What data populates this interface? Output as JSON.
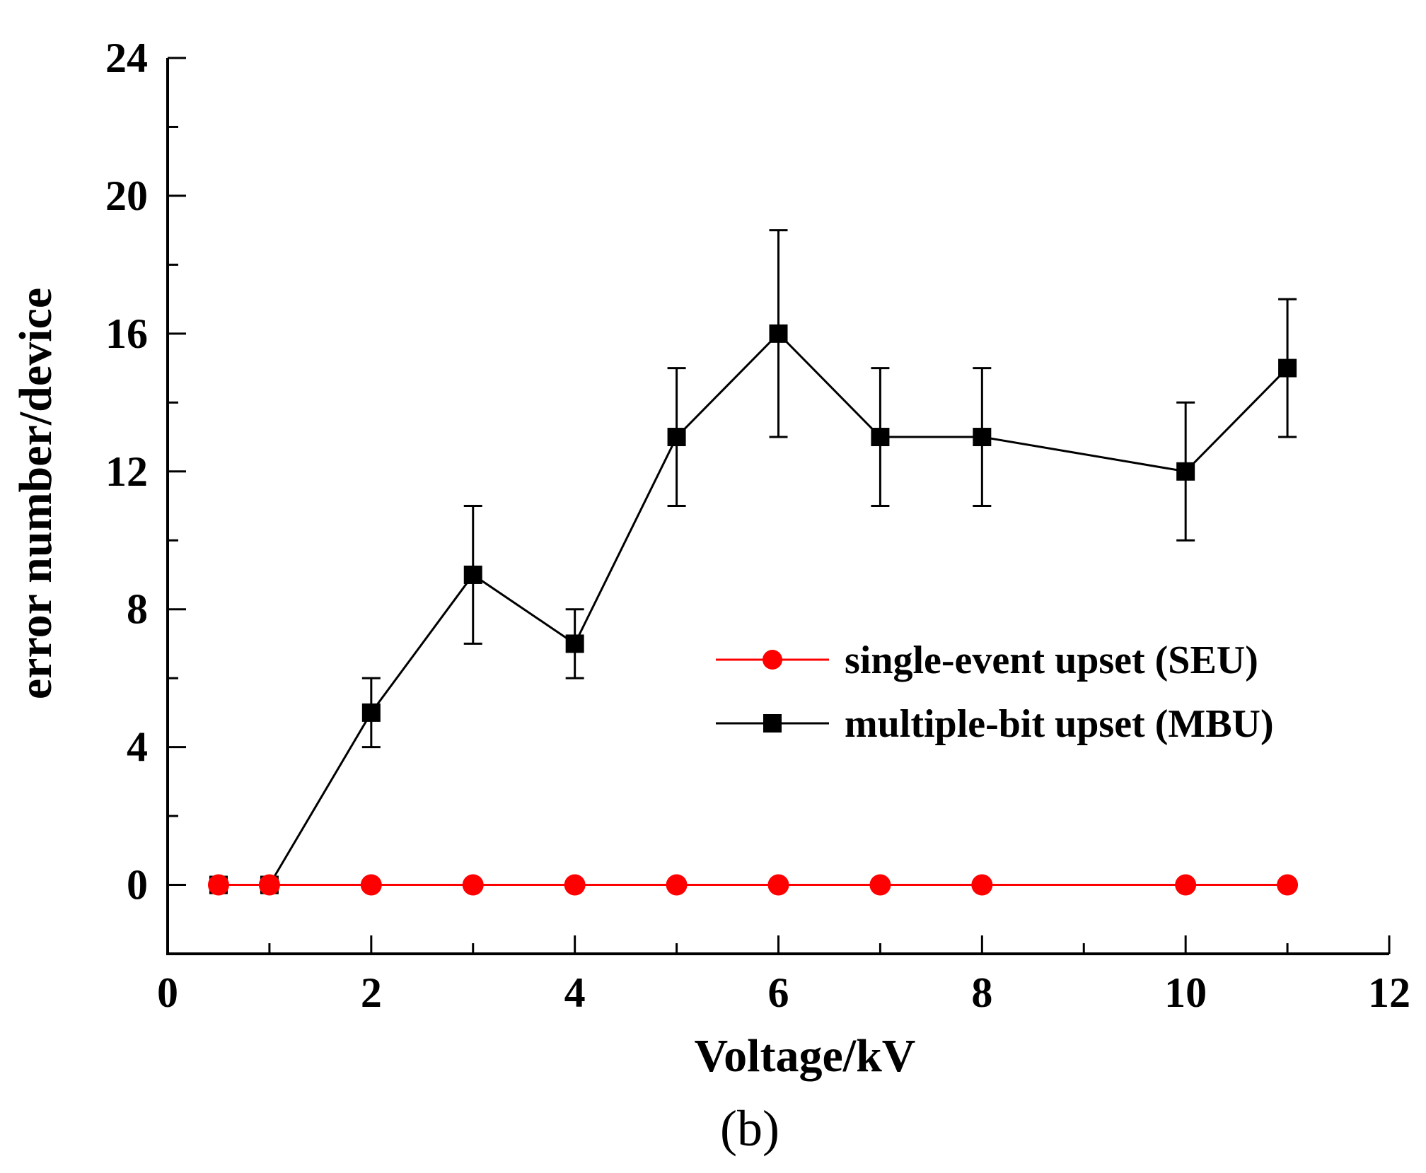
{
  "chart_data": {
    "type": "line",
    "title": "",
    "xlabel": "Voltage/kV",
    "ylabel": "error number/device",
    "panel_label": "(b)",
    "xlim": [
      0,
      12
    ],
    "ylim": [
      -2,
      24
    ],
    "xticks": [
      0,
      2,
      4,
      6,
      8,
      10,
      12
    ],
    "yticks": [
      0,
      4,
      8,
      12,
      16,
      20,
      24
    ],
    "grid": false,
    "legend_position": "center-right",
    "x": [
      0.5,
      1,
      2,
      3,
      4,
      5,
      6,
      7,
      8,
      10,
      11
    ],
    "series": [
      {
        "name": "single-event upset (SEU)",
        "color": "#ff0000",
        "marker": "circle",
        "values": [
          0,
          0,
          0,
          0,
          0,
          0,
          0,
          0,
          0,
          0,
          0
        ]
      },
      {
        "name": "multiple-bit upset (MBU)",
        "color": "#000000",
        "marker": "square",
        "values": [
          0,
          0,
          5,
          9,
          7,
          13,
          16,
          13,
          13,
          12,
          15
        ],
        "error_low": [
          0,
          0,
          4,
          7,
          6,
          11,
          13,
          11,
          11,
          10,
          13
        ],
        "error_high": [
          0,
          0,
          6,
          11,
          8,
          15,
          19,
          15,
          15,
          14,
          17
        ]
      }
    ]
  }
}
